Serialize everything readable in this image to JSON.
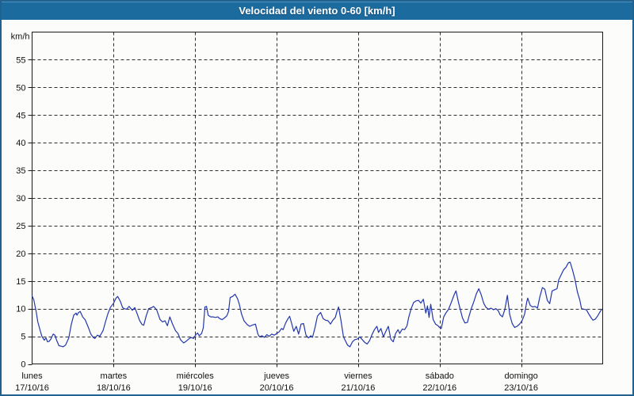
{
  "window": {
    "title": "Velocidad del viento 0-60 [km/h]"
  },
  "colors": {
    "frame_border": "#20618f",
    "titlebar_bg": "#1c6b9f",
    "titlebar_top_edge": "#4f93c1",
    "titlebar_text": "#ffffff",
    "page_bg": "#fcfdfb",
    "plot_border": "#1a1a1a",
    "grid": "#2f2f2f",
    "axis_text": "#111111",
    "line": "#2336ad"
  },
  "chart_data": {
    "type": "line",
    "title": "Velocidad del viento 0-60 [km/h]",
    "xlabel": "",
    "ylabel": "km/h",
    "ylim": [
      0,
      60
    ],
    "ytick_step": 5,
    "yticks": [
      0,
      5,
      10,
      15,
      20,
      25,
      30,
      35,
      40,
      45,
      50,
      55
    ],
    "grid": "dashed",
    "legend": "none",
    "x_axis_unit": "days",
    "xlim_days": [
      0,
      7
    ],
    "days": [
      {
        "name": "lunes",
        "date": "17/10/16"
      },
      {
        "name": "martes",
        "date": "18/10/16"
      },
      {
        "name": "miércoles",
        "date": "19/10/16"
      },
      {
        "name": "jueves",
        "date": "20/10/16"
      },
      {
        "name": "viernes",
        "date": "21/10/16"
      },
      {
        "name": "sábado",
        "date": "22/10/16"
      },
      {
        "name": "domingo",
        "date": "23/10/16"
      }
    ],
    "series": [
      {
        "name": "Velocidad del viento",
        "unit": "km/h",
        "color": "#2336ad",
        "points": [
          [
            0.0,
            12.3
          ],
          [
            0.02,
            11.6
          ],
          [
            0.05,
            9.5
          ],
          [
            0.07,
            7.6
          ],
          [
            0.1,
            6.0
          ],
          [
            0.12,
            5.0
          ],
          [
            0.15,
            4.3
          ],
          [
            0.17,
            4.7
          ],
          [
            0.19,
            4.0
          ],
          [
            0.21,
            4.1
          ],
          [
            0.23,
            4.5
          ],
          [
            0.26,
            5.4
          ],
          [
            0.28,
            5.2
          ],
          [
            0.3,
            4.3
          ],
          [
            0.33,
            3.3
          ],
          [
            0.36,
            3.2
          ],
          [
            0.38,
            3.1
          ],
          [
            0.41,
            3.4
          ],
          [
            0.45,
            4.7
          ],
          [
            0.48,
            7.1
          ],
          [
            0.51,
            8.8
          ],
          [
            0.54,
            9.2
          ],
          [
            0.55,
            8.8
          ],
          [
            0.57,
            9.3
          ],
          [
            0.59,
            9.5
          ],
          [
            0.62,
            8.5
          ],
          [
            0.65,
            8.0
          ],
          [
            0.69,
            6.6
          ],
          [
            0.72,
            5.4
          ],
          [
            0.75,
            4.8
          ],
          [
            0.77,
            4.6
          ],
          [
            0.8,
            5.2
          ],
          [
            0.83,
            5.0
          ],
          [
            0.87,
            6.0
          ],
          [
            0.9,
            7.6
          ],
          [
            0.93,
            9.1
          ],
          [
            0.96,
            10.2
          ],
          [
            1.0,
            11.0
          ],
          [
            1.03,
            11.9
          ],
          [
            1.05,
            12.2
          ],
          [
            1.08,
            11.4
          ],
          [
            1.11,
            10.2
          ],
          [
            1.13,
            10.0
          ],
          [
            1.16,
            9.9
          ],
          [
            1.19,
            10.4
          ],
          [
            1.23,
            9.7
          ],
          [
            1.26,
            10.2
          ],
          [
            1.29,
            9.0
          ],
          [
            1.32,
            7.8
          ],
          [
            1.35,
            7.1
          ],
          [
            1.37,
            7.0
          ],
          [
            1.4,
            8.7
          ],
          [
            1.43,
            10.0
          ],
          [
            1.47,
            10.2
          ],
          [
            1.49,
            10.4
          ],
          [
            1.51,
            10.1
          ],
          [
            1.53,
            9.7
          ],
          [
            1.57,
            8.0
          ],
          [
            1.6,
            7.6
          ],
          [
            1.63,
            7.8
          ],
          [
            1.66,
            6.9
          ],
          [
            1.69,
            8.5
          ],
          [
            1.72,
            7.3
          ],
          [
            1.76,
            6.0
          ],
          [
            1.79,
            5.5
          ],
          [
            1.82,
            4.4
          ],
          [
            1.86,
            3.8
          ],
          [
            1.89,
            4.1
          ],
          [
            1.92,
            4.5
          ],
          [
            1.95,
            4.8
          ],
          [
            1.98,
            4.6
          ],
          [
            2.01,
            5.3
          ],
          [
            2.03,
            5.6
          ],
          [
            2.05,
            5.1
          ],
          [
            2.08,
            5.5
          ],
          [
            2.1,
            6.5
          ],
          [
            2.12,
            10.3
          ],
          [
            2.14,
            10.4
          ],
          [
            2.16,
            8.8
          ],
          [
            2.19,
            8.5
          ],
          [
            2.22,
            8.5
          ],
          [
            2.25,
            8.4
          ],
          [
            2.28,
            8.5
          ],
          [
            2.3,
            8.2
          ],
          [
            2.33,
            8.0
          ],
          [
            2.36,
            8.3
          ],
          [
            2.39,
            8.7
          ],
          [
            2.41,
            9.5
          ],
          [
            2.43,
            12.0
          ],
          [
            2.46,
            12.2
          ],
          [
            2.49,
            12.6
          ],
          [
            2.52,
            11.8
          ],
          [
            2.54,
            10.9
          ],
          [
            2.57,
            9.0
          ],
          [
            2.6,
            7.8
          ],
          [
            2.64,
            7.1
          ],
          [
            2.67,
            6.8
          ],
          [
            2.7,
            7.0
          ],
          [
            2.74,
            7.2
          ],
          [
            2.77,
            5.4
          ],
          [
            2.79,
            4.9
          ],
          [
            2.82,
            5.1
          ],
          [
            2.85,
            4.8
          ],
          [
            2.88,
            5.3
          ],
          [
            2.91,
            5.0
          ],
          [
            2.94,
            5.4
          ],
          [
            2.97,
            5.2
          ],
          [
            3.0,
            5.5
          ],
          [
            3.03,
            5.8
          ],
          [
            3.06,
            6.4
          ],
          [
            3.08,
            6.2
          ],
          [
            3.11,
            7.4
          ],
          [
            3.14,
            8.2
          ],
          [
            3.16,
            8.6
          ],
          [
            3.19,
            7.0
          ],
          [
            3.21,
            5.9
          ],
          [
            3.24,
            6.8
          ],
          [
            3.27,
            5.4
          ],
          [
            3.3,
            7.2
          ],
          [
            3.33,
            7.3
          ],
          [
            3.36,
            5.2
          ],
          [
            3.39,
            4.7
          ],
          [
            3.42,
            5.1
          ],
          [
            3.44,
            4.8
          ],
          [
            3.47,
            6.5
          ],
          [
            3.5,
            8.6
          ],
          [
            3.52,
            9.0
          ],
          [
            3.54,
            9.3
          ],
          [
            3.57,
            8.2
          ],
          [
            3.6,
            7.9
          ],
          [
            3.63,
            7.8
          ],
          [
            3.66,
            7.2
          ],
          [
            3.69,
            7.9
          ],
          [
            3.72,
            8.4
          ],
          [
            3.74,
            9.5
          ],
          [
            3.76,
            10.3
          ],
          [
            3.79,
            7.8
          ],
          [
            3.82,
            4.9
          ],
          [
            3.85,
            4.0
          ],
          [
            3.87,
            3.4
          ],
          [
            3.9,
            3.1
          ],
          [
            3.93,
            4.0
          ],
          [
            3.96,
            4.4
          ],
          [
            3.99,
            4.5
          ],
          [
            4.02,
            4.9
          ],
          [
            4.05,
            4.4
          ],
          [
            4.08,
            3.9
          ],
          [
            4.11,
            3.6
          ],
          [
            4.14,
            4.2
          ],
          [
            4.17,
            5.3
          ],
          [
            4.2,
            6.2
          ],
          [
            4.23,
            6.8
          ],
          [
            4.25,
            5.7
          ],
          [
            4.28,
            6.4
          ],
          [
            4.31,
            4.9
          ],
          [
            4.34,
            5.9
          ],
          [
            4.37,
            6.8
          ],
          [
            4.4,
            4.5
          ],
          [
            4.43,
            4.0
          ],
          [
            4.46,
            5.5
          ],
          [
            4.49,
            6.2
          ],
          [
            4.51,
            5.5
          ],
          [
            4.54,
            6.3
          ],
          [
            4.57,
            6.2
          ],
          [
            4.6,
            6.9
          ],
          [
            4.62,
            8.4
          ],
          [
            4.65,
            10.0
          ],
          [
            4.68,
            11.1
          ],
          [
            4.71,
            11.4
          ],
          [
            4.74,
            11.5
          ],
          [
            4.77,
            11.0
          ],
          [
            4.8,
            11.7
          ],
          [
            4.83,
            9.2
          ],
          [
            4.85,
            10.5
          ],
          [
            4.87,
            8.4
          ],
          [
            4.89,
            10.8
          ],
          [
            4.92,
            8.0
          ],
          [
            4.95,
            7.2
          ],
          [
            4.98,
            6.9
          ],
          [
            4.99,
            6.7
          ],
          [
            5.02,
            6.4
          ],
          [
            5.05,
            8.5
          ],
          [
            5.08,
            9.3
          ],
          [
            5.11,
            9.9
          ],
          [
            5.15,
            11.4
          ],
          [
            5.18,
            12.6
          ],
          [
            5.2,
            13.2
          ],
          [
            5.23,
            11.2
          ],
          [
            5.25,
            10.0
          ],
          [
            5.28,
            8.3
          ],
          [
            5.31,
            7.4
          ],
          [
            5.34,
            7.5
          ],
          [
            5.36,
            8.6
          ],
          [
            5.39,
            10.1
          ],
          [
            5.42,
            11.3
          ],
          [
            5.45,
            12.7
          ],
          [
            5.48,
            13.6
          ],
          [
            5.51,
            12.5
          ],
          [
            5.54,
            11.0
          ],
          [
            5.57,
            10.2
          ],
          [
            5.6,
            9.9
          ],
          [
            5.63,
            10.1
          ],
          [
            5.66,
            9.8
          ],
          [
            5.69,
            10.0
          ],
          [
            5.72,
            9.6
          ],
          [
            5.74,
            8.9
          ],
          [
            5.77,
            8.5
          ],
          [
            5.8,
            9.9
          ],
          [
            5.83,
            12.4
          ],
          [
            5.86,
            8.9
          ],
          [
            5.89,
            7.3
          ],
          [
            5.92,
            6.6
          ],
          [
            5.95,
            6.8
          ],
          [
            5.98,
            7.2
          ],
          [
            6.01,
            7.8
          ],
          [
            6.04,
            8.9
          ],
          [
            6.07,
            11.3
          ],
          [
            6.08,
            11.9
          ],
          [
            6.11,
            10.6
          ],
          [
            6.14,
            10.3
          ],
          [
            6.17,
            10.4
          ],
          [
            6.2,
            10.1
          ],
          [
            6.23,
            12.2
          ],
          [
            6.26,
            13.8
          ],
          [
            6.29,
            13.5
          ],
          [
            6.32,
            11.5
          ],
          [
            6.35,
            10.9
          ],
          [
            6.38,
            13.2
          ],
          [
            6.41,
            13.4
          ],
          [
            6.44,
            13.6
          ],
          [
            6.46,
            15.2
          ],
          [
            6.49,
            16.1
          ],
          [
            6.52,
            17.0
          ],
          [
            6.55,
            17.5
          ],
          [
            6.58,
            18.3
          ],
          [
            6.6,
            18.4
          ],
          [
            6.63,
            17.0
          ],
          [
            6.66,
            15.3
          ],
          [
            6.69,
            13.0
          ],
          [
            6.72,
            11.5
          ],
          [
            6.74,
            10.0
          ],
          [
            6.77,
            9.9
          ],
          [
            6.8,
            9.8
          ],
          [
            6.83,
            9.0
          ],
          [
            6.86,
            8.3
          ],
          [
            6.88,
            7.9
          ],
          [
            6.91,
            8.1
          ],
          [
            6.94,
            8.7
          ],
          [
            6.97,
            9.5
          ],
          [
            6.99,
            9.9
          ]
        ]
      }
    ]
  }
}
